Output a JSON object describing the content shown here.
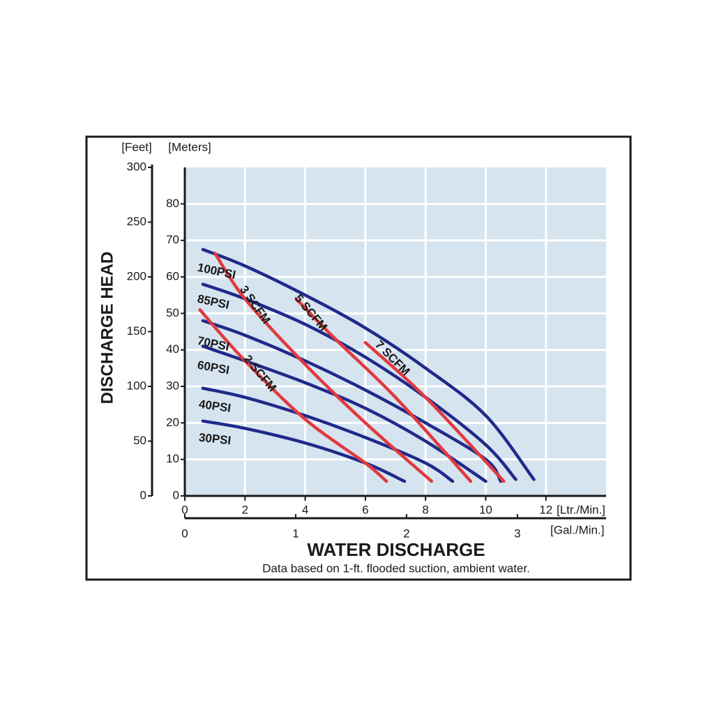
{
  "chart_data": {
    "type": "line",
    "x_label": "WATER DISCHARGE",
    "y_label": "DISCHARGE HEAD",
    "note": "Data based on 1-ft. flooded suction, ambient water.",
    "x_unit": "[Ltr./Min.]",
    "x2_unit": "[Gal./Min.]",
    "y_unit": "[Meters]",
    "y2_unit": "[Feet]",
    "xlim": [
      0,
      14
    ],
    "xticks": [
      0,
      2,
      4,
      6,
      8,
      10,
      12
    ],
    "x2lim": [
      0,
      3.8
    ],
    "x2ticks": [
      0,
      1,
      2,
      3
    ],
    "ylim": [
      0,
      90
    ],
    "yticks": [
      0,
      10,
      20,
      30,
      40,
      50,
      60,
      70,
      80
    ],
    "y2lim": [
      0,
      300
    ],
    "y2ticks": [
      0,
      50,
      100,
      150,
      200,
      250,
      300
    ],
    "grid": true,
    "background": "#d6e4f0",
    "series": [
      {
        "name": "100PSI",
        "color": "#1f2a8a",
        "x": [
          0.6,
          2,
          4,
          6,
          8,
          10,
          11.6
        ],
        "values": [
          67.5,
          63,
          55,
          46,
          35,
          22,
          4.5
        ]
      },
      {
        "name": "85PSI",
        "color": "#1f2a8a",
        "x": [
          0.6,
          2,
          4,
          6,
          8,
          10,
          11
        ],
        "values": [
          58,
          54,
          47,
          38,
          27,
          14,
          4.5
        ]
      },
      {
        "name": "70PSI",
        "color": "#1f2a8a",
        "x": [
          0.6,
          2,
          4,
          6,
          8,
          10,
          10.5
        ],
        "values": [
          48,
          44,
          37,
          29,
          20,
          10,
          4
        ]
      },
      {
        "name": "60PSI",
        "color": "#1f2a8a",
        "x": [
          0.6,
          2,
          4,
          6,
          8,
          10
        ],
        "values": [
          41,
          37,
          31,
          24,
          15,
          4
        ]
      },
      {
        "name": "40PSI",
        "color": "#1f2a8a",
        "x": [
          0.6,
          2,
          4,
          6,
          8,
          8.9
        ],
        "values": [
          29.5,
          27,
          22,
          16,
          9,
          4
        ]
      },
      {
        "name": "30PSI",
        "color": "#1f2a8a",
        "x": [
          0.6,
          2,
          4,
          6,
          7.3
        ],
        "values": [
          20.5,
          18.5,
          14.5,
          9,
          4
        ]
      },
      {
        "name": "2 SCFM",
        "color": "#e03a3e",
        "x": [
          0.5,
          2,
          4,
          6,
          6.7
        ],
        "values": [
          51,
          37,
          21,
          9,
          4
        ]
      },
      {
        "name": "3 SCFM",
        "color": "#e03a3e",
        "x": [
          1,
          2,
          4,
          6,
          8.2
        ],
        "values": [
          66.5,
          54,
          36,
          20,
          4
        ]
      },
      {
        "name": "5 SCFM",
        "color": "#e03a3e",
        "x": [
          3.7,
          5,
          7,
          9.5
        ],
        "values": [
          54,
          43,
          27,
          4
        ]
      },
      {
        "name": "7 SCFM",
        "color": "#e03a3e",
        "x": [
          6,
          8,
          10.6
        ],
        "values": [
          42,
          27,
          4
        ]
      }
    ]
  }
}
